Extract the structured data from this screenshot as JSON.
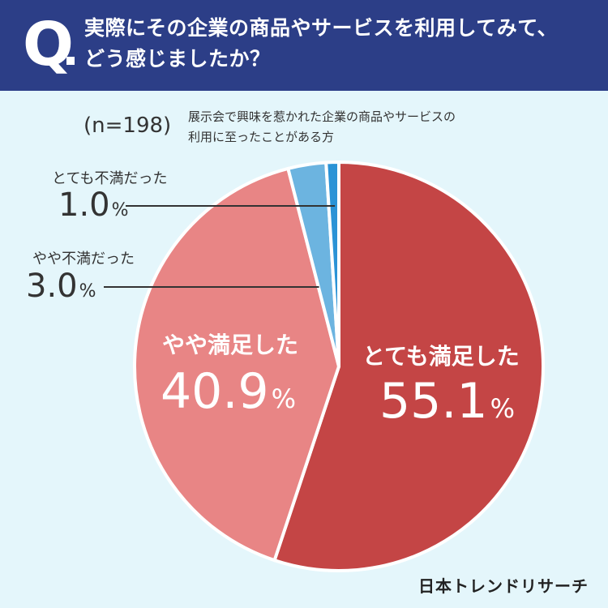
{
  "header": {
    "q_mark": "Q",
    "question_line1": "実際にその企業の商品やサービスを利用してみて、",
    "question_line2": "どう感じましたか？",
    "background": "#2c3e87"
  },
  "sample": {
    "n_label": "(n=198)",
    "note_line1": "展示会で興味を惹かれた企業の商品やサービスの",
    "note_line2": "利用に至ったことがある方"
  },
  "chart_data": {
    "type": "pie",
    "start": "12 o'clock",
    "direction": "clockwise",
    "slices": [
      {
        "label": "とても満足した",
        "value": 55.1,
        "display": "55.1",
        "unit": "%",
        "color": "#c44545"
      },
      {
        "label": "やや満足した",
        "value": 40.9,
        "display": "40.9",
        "unit": "%",
        "color": "#e88585"
      },
      {
        "label": "やや不満だった",
        "value": 3.0,
        "display": "3.0",
        "unit": "%",
        "color": "#6cb4e0"
      },
      {
        "label": "とても不満だった",
        "value": 1.0,
        "display": "1.0",
        "unit": "%",
        "color": "#2b93d6"
      }
    ]
  },
  "brand": {
    "name": "日本トレンドリサーチ"
  }
}
